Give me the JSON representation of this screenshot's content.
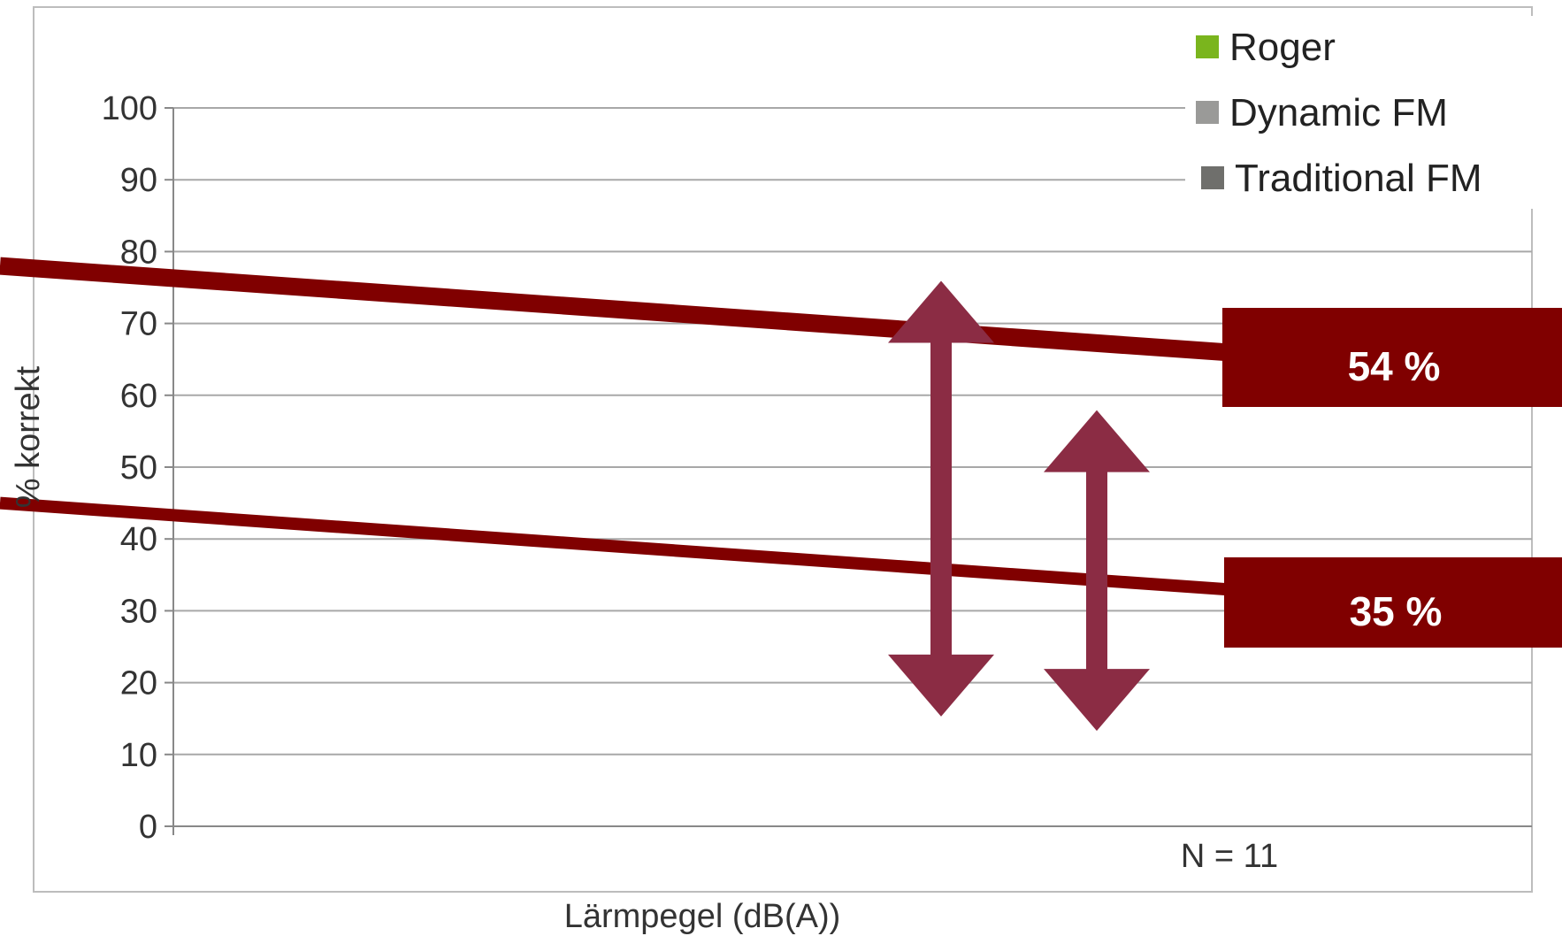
{
  "chart_data": {
    "type": "line",
    "xlabel": "Lärmpegel (dB(A))",
    "ylabel": "% korrekt",
    "ylim": [
      0,
      100
    ],
    "yticks": [
      0,
      10,
      20,
      30,
      40,
      50,
      60,
      70,
      80,
      90,
      100
    ],
    "grid": true,
    "legend": {
      "placement": "top-right",
      "entries": [
        {
          "label": "Roger",
          "color": "#7ab51d"
        },
        {
          "label": "Dynamic FM",
          "color": "#9a9a98"
        },
        {
          "label": "Traditional FM",
          "color": "#6f6f6c"
        }
      ]
    },
    "trend_lines": [
      {
        "color": "#800000",
        "x": [
          0,
          1
        ],
        "y": [
          78,
          66
        ]
      },
      {
        "color": "#800000",
        "x": [
          0,
          1
        ],
        "y": [
          45,
          33
        ]
      }
    ],
    "callouts": [
      {
        "label": "54 %",
        "color": "#800000"
      },
      {
        "label": "35 %",
        "color": "#800000"
      }
    ],
    "arrows": [
      {
        "from": 71,
        "to": 18,
        "color": "#8b2c44"
      },
      {
        "from": 53,
        "to": 16,
        "color": "#8b2c44"
      }
    ],
    "note": "N = 11"
  }
}
